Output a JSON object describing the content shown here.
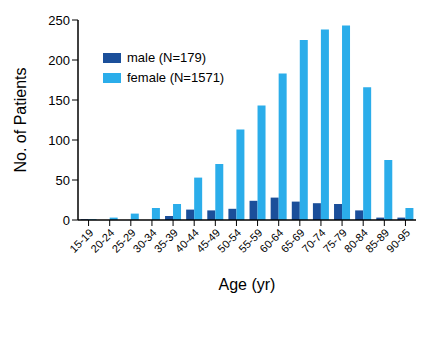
{
  "chart_data": {
    "type": "bar",
    "x_label": "Age (yr)",
    "y_label": "No. of Patients",
    "categories": [
      "15-19",
      "20-24",
      "25-29",
      "30-34",
      "35-39",
      "40-44",
      "45-49",
      "50-54",
      "55-59",
      "60-64",
      "65-69",
      "70-74",
      "75-79",
      "80-84",
      "85-89",
      "90-95"
    ],
    "series": [
      {
        "name": "male (N=179)",
        "color": "#1b4f9a",
        "values": [
          1,
          0,
          0,
          0,
          5,
          13,
          12,
          14,
          24,
          28,
          23,
          21,
          20,
          12,
          3,
          3
        ]
      },
      {
        "name": "female (N=1571)",
        "color": "#2badea",
        "values": [
          1,
          3,
          8,
          15,
          20,
          53,
          70,
          113,
          143,
          183,
          225,
          238,
          243,
          166,
          75,
          15
        ]
      }
    ],
    "ylim": [
      0,
      250
    ],
    "yticks": [
      0,
      50,
      100,
      150,
      200,
      250
    ],
    "grid": false,
    "legend": "upper left"
  }
}
